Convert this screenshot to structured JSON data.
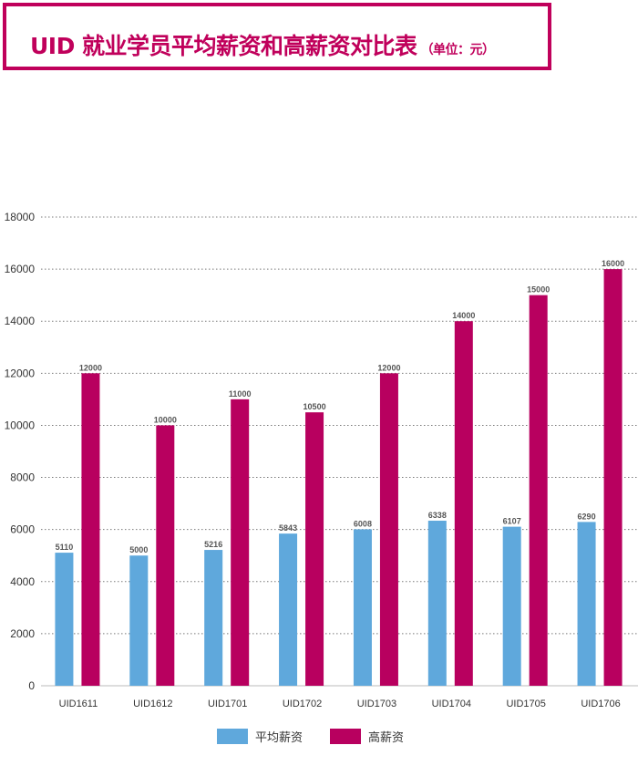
{
  "header": {
    "title": "UID 就业学员平均薪资和高薪资对比表",
    "subtitle": "（单位：元）"
  },
  "colors": {
    "accent": "#c0005b",
    "avg_series": "#5fa8dc",
    "high_series": "#b8005f"
  },
  "chart_data": {
    "type": "bar",
    "title": "UID 就业学员平均薪资和高薪资对比表",
    "subtitle": "（单位：元）",
    "categories": [
      "UID1611",
      "UID1612",
      "UID1701",
      "UID1702",
      "UID1703",
      "UID1704",
      "UID1705",
      "UID1706"
    ],
    "series": [
      {
        "name": "平均薪资",
        "color": "#5fa8dc",
        "values": [
          5110,
          5000,
          5216,
          5843,
          6008,
          6338,
          6107,
          6290
        ]
      },
      {
        "name": "高薪资",
        "color": "#b8005f",
        "values": [
          12000,
          10000,
          11000,
          10500,
          12000,
          14000,
          15000,
          16000
        ]
      }
    ],
    "ylim": [
      0,
      18000
    ],
    "yticks": [
      0,
      2000,
      4000,
      6000,
      8000,
      10000,
      12000,
      14000,
      16000,
      18000
    ],
    "grid": true,
    "grid_style": "dotted",
    "legend": "bottom-center",
    "data_labels": true
  }
}
